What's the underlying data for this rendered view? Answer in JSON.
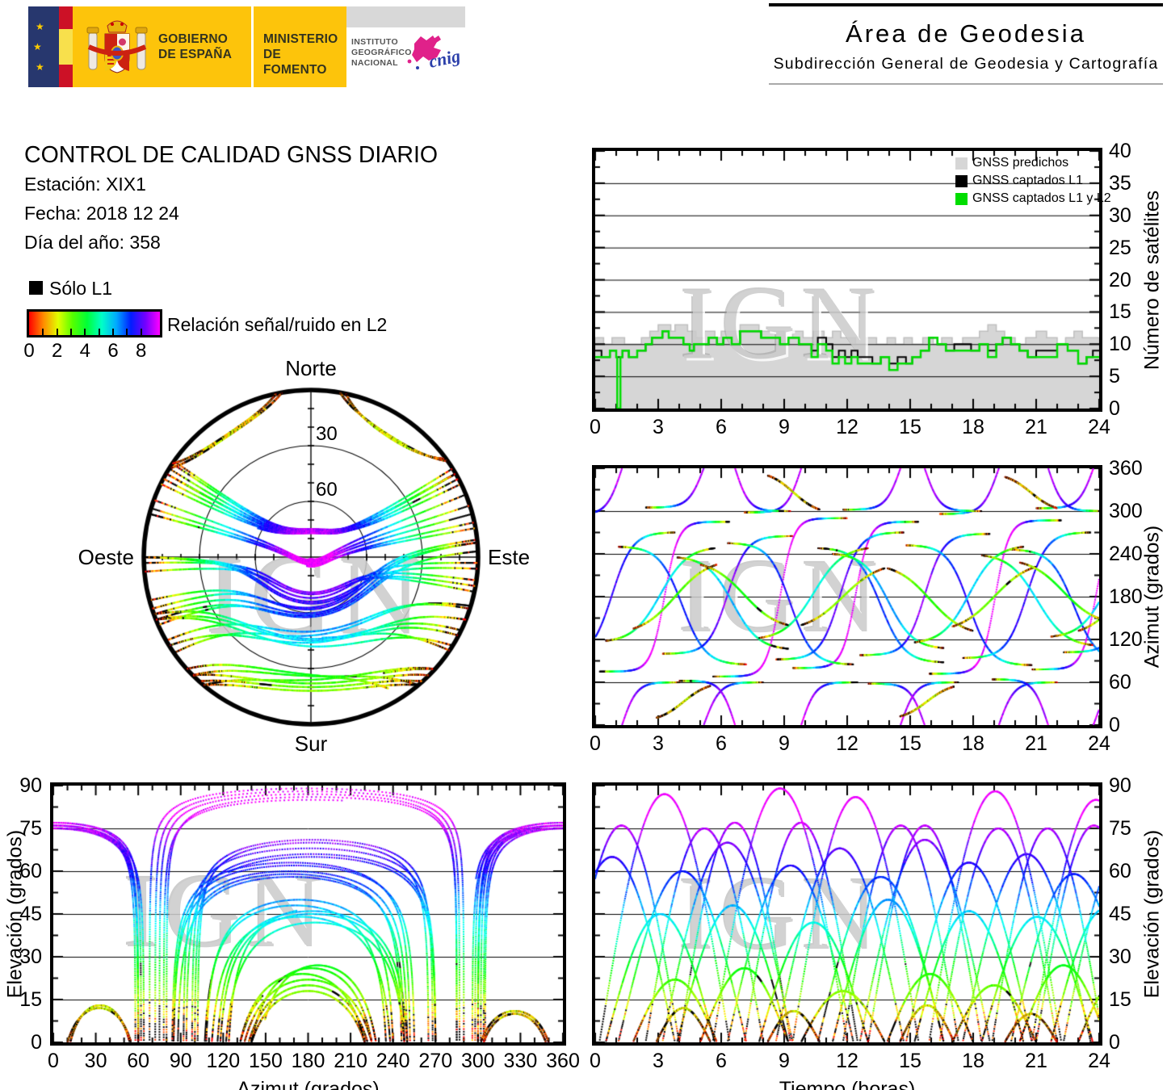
{
  "header": {
    "gobierno": "GOBIERNO\nDE ESPAÑA",
    "ministerio": "MINISTERIO\nDE FOMENTO",
    "instituto": "INSTITUTO\nGEOGRÁFICO\nNACIONAL",
    "cnig": "cnig",
    "area_title": "Área de Geodesia",
    "area_subtitle": "Subdirección General de Geodesia y Cartografía"
  },
  "info": {
    "title": "CONTROL DE CALIDAD GNSS DIARIO",
    "station": "Estación: XIX1",
    "date": "Fecha: 2018 12 24",
    "doy": "Día del año: 358"
  },
  "legend": {
    "solo_l1": "Sólo L1",
    "colorbar_label": "Relación señal/ruido en L2",
    "colorbar_min": 0,
    "colorbar_max": 9,
    "colorbar_tick_numbers": [
      0,
      2,
      4,
      6,
      8
    ]
  },
  "watermark": "IGN",
  "skyplot_labels": {
    "north": "Norte",
    "south": "Sur",
    "west": "Oeste",
    "east": "Este",
    "rings": [
      30,
      60
    ]
  },
  "pass_format": "[start_hour, duration_hours, rise_azimuth_deg, azimuth_sweep_deg, max_elevation_deg]",
  "satellite_passes": [
    [
      0.2,
      6.2,
      75,
      210,
      87
    ],
    [
      5.6,
      6.4,
      68,
      222,
      89
    ],
    [
      9.4,
      6.0,
      80,
      205,
      86
    ],
    [
      15.9,
      6.3,
      72,
      215,
      88
    ],
    [
      20.8,
      6.1,
      78,
      208,
      85
    ],
    [
      -1.5,
      5.5,
      295,
      125,
      76
    ],
    [
      2.4,
      5.6,
      305,
      115,
      75
    ],
    [
      7.1,
      5.4,
      298,
      122,
      77
    ],
    [
      11.8,
      5.5,
      302,
      118,
      76
    ],
    [
      16.4,
      5.6,
      296,
      124,
      75
    ],
    [
      21.0,
      5.5,
      304,
      116,
      76
    ],
    [
      4.0,
      5.3,
      62,
      -122,
      77
    ],
    [
      13.0,
      5.4,
      58,
      -118,
      76
    ],
    [
      18.9,
      5.3,
      64,
      -124,
      75
    ],
    [
      -2.2,
      6.0,
      95,
      175,
      65
    ],
    [
      1.1,
      6.1,
      250,
      -165,
      60
    ],
    [
      3.2,
      6.2,
      100,
      165,
      70
    ],
    [
      6.3,
      6.0,
      255,
      -170,
      62
    ],
    [
      8.6,
      6.1,
      92,
      178,
      68
    ],
    [
      10.6,
      6.0,
      248,
      -160,
      58
    ],
    [
      12.6,
      6.2,
      98,
      170,
      71
    ],
    [
      14.8,
      6.0,
      252,
      -168,
      63
    ],
    [
      17.5,
      6.1,
      94,
      176,
      66
    ],
    [
      19.8,
      6.0,
      246,
      -158,
      59
    ],
    [
      22.3,
      6.2,
      102,
      168,
      72
    ],
    [
      0.5,
      5.2,
      118,
      130,
      45
    ],
    [
      3.9,
      5.3,
      235,
      -128,
      48
    ],
    [
      7.8,
      5.2,
      122,
      126,
      42
    ],
    [
      11.3,
      5.3,
      240,
      -132,
      50
    ],
    [
      15.2,
      5.2,
      116,
      134,
      46
    ],
    [
      18.4,
      5.3,
      238,
      -126,
      44
    ],
    [
      21.7,
      5.2,
      124,
      128,
      47
    ],
    [
      1.8,
      4.0,
      135,
      90,
      22
    ],
    [
      5.0,
      4.2,
      225,
      -85,
      26
    ],
    [
      9.8,
      4.0,
      140,
      80,
      18
    ],
    [
      13.9,
      4.1,
      220,
      -88,
      24
    ],
    [
      17.0,
      4.0,
      138,
      84,
      20
    ],
    [
      20.2,
      4.2,
      228,
      -82,
      27
    ],
    [
      23.0,
      4.0,
      132,
      92,
      23
    ],
    [
      2.9,
      2.6,
      10,
      45,
      12
    ],
    [
      8.2,
      2.5,
      350,
      -48,
      11
    ],
    [
      14.5,
      2.6,
      12,
      42,
      13
    ],
    [
      19.5,
      2.5,
      348,
      -44,
      10
    ]
  ],
  "coverage_hole": {
    "azimuth_center_deg": 0,
    "projected_center_offset": 0.52,
    "projected_radius": 0.33,
    "note": "northern sky region with no GNSS tracks"
  },
  "snr_colormap": {
    "value_range": [
      0,
      9
    ],
    "hue_range_deg": [
      0,
      300
    ],
    "l1_only_color": "#000000"
  },
  "chart_data": [
    {
      "id": "sat_count",
      "type": "area",
      "xlabel": "",
      "ylabel": "Número de satélites",
      "xlim": [
        0,
        24
      ],
      "ylim": [
        0,
        40
      ],
      "xticks": [
        0,
        3,
        6,
        9,
        12,
        15,
        18,
        21,
        24
      ],
      "yticks": [
        0,
        5,
        10,
        15,
        20,
        25,
        30,
        35,
        40
      ],
      "x_minor": 1,
      "y_minor": 2.5,
      "grid": "horizontal",
      "legend_position": "top-right",
      "legend": [
        {
          "label": "GNSS predichos",
          "color": "#d6d6d6"
        },
        {
          "label": "GNSS captados L1",
          "color": "#000000"
        },
        {
          "label": "GNSS captados L1 y L2",
          "color": "#00dd00"
        }
      ],
      "series": [
        {
          "name": "GNSS predichos",
          "style": "area",
          "color": "#d6d6d6",
          "points": [
            [
              0,
              11
            ],
            [
              0.4,
              10
            ],
            [
              0.8,
              11
            ],
            [
              1.4,
              10
            ],
            [
              2.2,
              11
            ],
            [
              2.6,
              12
            ],
            [
              3,
              13
            ],
            [
              3.6,
              12
            ],
            [
              3.8,
              13
            ],
            [
              4.4,
              12
            ],
            [
              4.8,
              11
            ],
            [
              5.2,
              12
            ],
            [
              5.7,
              11
            ],
            [
              6,
              12
            ],
            [
              6.9,
              13
            ],
            [
              7.8,
              12
            ],
            [
              8.6,
              12
            ],
            [
              9,
              11
            ],
            [
              9.4,
              12
            ],
            [
              9.9,
              11
            ],
            [
              10.4,
              12
            ],
            [
              10.9,
              11
            ],
            [
              11.3,
              12
            ],
            [
              11.7,
              11
            ],
            [
              12.4,
              10
            ],
            [
              12.9,
              11
            ],
            [
              13.4,
              10
            ],
            [
              13.9,
              11
            ],
            [
              14.3,
              10
            ],
            [
              14.7,
              11
            ],
            [
              15.1,
              10
            ],
            [
              15.6,
              11
            ],
            [
              16.1,
              10
            ],
            [
              16.5,
              11
            ],
            [
              17,
              10
            ],
            [
              17.5,
              11
            ],
            [
              18.3,
              12
            ],
            [
              18.7,
              13
            ],
            [
              19.1,
              12
            ],
            [
              19.5,
              11
            ],
            [
              20,
              10
            ],
            [
              20.5,
              11
            ],
            [
              21,
              12
            ],
            [
              21.5,
              11
            ],
            [
              22,
              10
            ],
            [
              22.4,
              11
            ],
            [
              22.8,
              12
            ],
            [
              23.2,
              11
            ],
            [
              24,
              11
            ]
          ]
        },
        {
          "name": "GNSS captados L1",
          "style": "step",
          "color": "#000000",
          "points": [
            [
              0,
              9
            ],
            [
              0.3,
              8
            ],
            [
              0.7,
              9
            ],
            [
              1,
              8
            ],
            [
              1.3,
              9
            ],
            [
              1.6,
              8
            ],
            [
              2,
              9
            ],
            [
              2.4,
              10
            ],
            [
              2.7,
              11
            ],
            [
              3.2,
              12
            ],
            [
              3.5,
              11
            ],
            [
              4.2,
              10
            ],
            [
              4.5,
              9
            ],
            [
              4.7,
              10
            ],
            [
              5.4,
              11
            ],
            [
              5.8,
              10
            ],
            [
              6.1,
              11
            ],
            [
              6.5,
              10
            ],
            [
              6.9,
              12
            ],
            [
              7.9,
              11
            ],
            [
              8.8,
              10
            ],
            [
              9.2,
              11
            ],
            [
              9.7,
              10
            ],
            [
              10.3,
              9
            ],
            [
              10.6,
              11
            ],
            [
              11,
              10
            ],
            [
              11.3,
              8
            ],
            [
              11.6,
              9
            ],
            [
              11.9,
              8
            ],
            [
              12.2,
              9
            ],
            [
              12.5,
              8
            ],
            [
              13.2,
              7
            ],
            [
              13.6,
              8
            ],
            [
              14,
              7
            ],
            [
              14.4,
              8
            ],
            [
              14.8,
              7
            ],
            [
              15.1,
              8
            ],
            [
              15.5,
              9
            ],
            [
              15.9,
              11
            ],
            [
              16.3,
              10
            ],
            [
              16.7,
              9
            ],
            [
              17.1,
              10
            ],
            [
              17.9,
              9
            ],
            [
              18.3,
              10
            ],
            [
              18.7,
              9
            ],
            [
              19.1,
              10
            ],
            [
              19.4,
              11
            ],
            [
              19.8,
              10
            ],
            [
              20.2,
              9
            ],
            [
              20.6,
              8
            ],
            [
              21,
              9
            ],
            [
              22,
              10
            ],
            [
              22.5,
              9
            ],
            [
              23,
              7
            ],
            [
              23.4,
              8
            ],
            [
              23.7,
              9
            ],
            [
              24,
              9
            ]
          ]
        },
        {
          "name": "GNSS captados L1 y L2",
          "style": "step",
          "color": "#00dd00",
          "points": [
            [
              0,
              8
            ],
            [
              0.3,
              8
            ],
            [
              0.7,
              9
            ],
            [
              1,
              8
            ],
            [
              1.05,
              0
            ],
            [
              1.2,
              8
            ],
            [
              1.3,
              9
            ],
            [
              1.6,
              8
            ],
            [
              2,
              9
            ],
            [
              2.4,
              10
            ],
            [
              2.7,
              11
            ],
            [
              3.2,
              12
            ],
            [
              3.5,
              11
            ],
            [
              4.2,
              10
            ],
            [
              4.5,
              9
            ],
            [
              4.7,
              10
            ],
            [
              5.4,
              11
            ],
            [
              5.8,
              10
            ],
            [
              6.1,
              11
            ],
            [
              6.5,
              10
            ],
            [
              6.9,
              12
            ],
            [
              7.9,
              11
            ],
            [
              8.8,
              10
            ],
            [
              9.2,
              11
            ],
            [
              9.7,
              10
            ],
            [
              10.3,
              8
            ],
            [
              10.6,
              10
            ],
            [
              11,
              9
            ],
            [
              11.3,
              7
            ],
            [
              11.6,
              8
            ],
            [
              11.9,
              7
            ],
            [
              12.2,
              8
            ],
            [
              12.5,
              7
            ],
            [
              13.2,
              7
            ],
            [
              13.6,
              8
            ],
            [
              14,
              6
            ],
            [
              14.4,
              7
            ],
            [
              14.8,
              7
            ],
            [
              15.1,
              8
            ],
            [
              15.5,
              9
            ],
            [
              15.9,
              11
            ],
            [
              16.3,
              10
            ],
            [
              16.7,
              9
            ],
            [
              17.1,
              9
            ],
            [
              17.9,
              9
            ],
            [
              18.3,
              10
            ],
            [
              18.7,
              8
            ],
            [
              19.1,
              10
            ],
            [
              19.4,
              11
            ],
            [
              19.8,
              10
            ],
            [
              20.2,
              9
            ],
            [
              20.6,
              8
            ],
            [
              21,
              8
            ],
            [
              22,
              10
            ],
            [
              22.5,
              9
            ],
            [
              23,
              7
            ],
            [
              23.4,
              8
            ],
            [
              23.7,
              8
            ],
            [
              24,
              8
            ]
          ]
        }
      ]
    },
    {
      "id": "azimuth_time",
      "type": "tracks",
      "xlabel": "",
      "ylabel": "Azimut (grados)",
      "xlim": [
        0,
        24
      ],
      "ylim": [
        0,
        360
      ],
      "xticks": [
        0,
        3,
        6,
        9,
        12,
        15,
        18,
        21,
        24
      ],
      "yticks": [
        0,
        60,
        120,
        180,
        240,
        300,
        360
      ],
      "x_minor": 1,
      "y_minor": 30,
      "grid": "horizontal",
      "x_field": "time",
      "y_field": "azimuth",
      "source": "satellite_passes"
    },
    {
      "id": "skyplot",
      "type": "polar-tracks",
      "rings_elevation_deg": [
        30,
        60
      ],
      "rim_elevation_deg": 0,
      "center_elevation_deg": 90,
      "source": "satellite_passes"
    },
    {
      "id": "elev_azimuth",
      "type": "tracks",
      "xlabel": "Azimut (grados)",
      "ylabel": "Elevación (grados)",
      "xlim": [
        0,
        360
      ],
      "ylim": [
        0,
        90
      ],
      "xticks": [
        0,
        30,
        60,
        90,
        120,
        150,
        180,
        210,
        240,
        270,
        300,
        330,
        360
      ],
      "yticks": [
        0,
        15,
        30,
        45,
        60,
        75,
        90
      ],
      "x_minor": 10,
      "y_minor": 7.5,
      "grid": "horizontal",
      "x_field": "azimuth",
      "y_field": "elevation",
      "source": "satellite_passes"
    },
    {
      "id": "elev_time",
      "type": "tracks",
      "xlabel": "Tiempo (horas)",
      "ylabel": "Elevación (grados)",
      "xlim": [
        0,
        24
      ],
      "ylim": [
        0,
        90
      ],
      "xticks": [
        0,
        3,
        6,
        9,
        12,
        15,
        18,
        21,
        24
      ],
      "yticks": [
        0,
        15,
        30,
        45,
        60,
        75,
        90
      ],
      "x_minor": 1,
      "y_minor": 7.5,
      "grid": "horizontal",
      "x_field": "time",
      "y_field": "elevation",
      "source": "satellite_passes"
    }
  ]
}
